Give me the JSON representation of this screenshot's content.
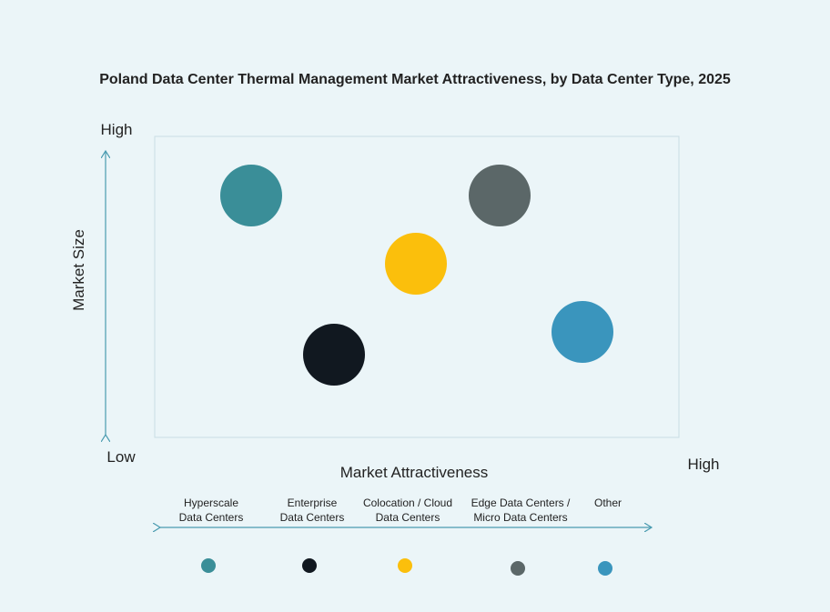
{
  "title": "Poland Data Center Thermal Management Market Attractiveness,  by Data Center Type, 2025",
  "y_axis": {
    "label": "Market Size",
    "high": "High",
    "low": "Low"
  },
  "x_axis": {
    "label": "Market Attractiveness",
    "high": "High"
  },
  "segments": [
    {
      "label_lines": [
        "Hyperscale",
        "Data Centers"
      ],
      "color": "#3a8e98"
    },
    {
      "label_lines": [
        "Enterprise",
        "Data Centers"
      ],
      "color": "#111820"
    },
    {
      "label_lines": [
        "Colocation / Cloud",
        "Data Centers"
      ],
      "color": "#fbbf0c"
    },
    {
      "label_lines": [
        "Edge Data Centers /",
        "Micro Data Centers"
      ],
      "color": "#5b6768"
    },
    {
      "label_lines": [
        "Other"
      ],
      "color": "#3a95bd"
    }
  ]
}
